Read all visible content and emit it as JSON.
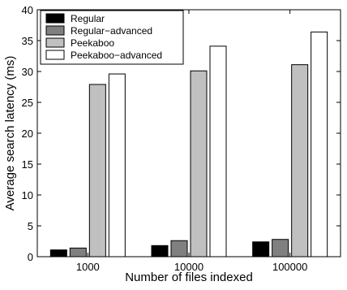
{
  "chart_data": {
    "type": "bar",
    "title": "",
    "xlabel": "Number of files indexed",
    "ylabel": "Average search latency (ms)",
    "categories": [
      "1000",
      "10000",
      "100000"
    ],
    "ylim": [
      0,
      40
    ],
    "yticks": [
      0,
      5,
      10,
      15,
      20,
      25,
      30,
      35,
      40
    ],
    "grid": false,
    "legend_position": "top-left",
    "series": [
      {
        "name": "Regular",
        "color": "#000000",
        "values": [
          1.1,
          1.8,
          2.4
        ]
      },
      {
        "name": "Regular−advanced",
        "color": "#808080",
        "values": [
          1.4,
          2.6,
          2.8
        ]
      },
      {
        "name": "Peekaboo",
        "color": "#c0c0c0",
        "values": [
          27.9,
          30.1,
          31.1
        ]
      },
      {
        "name": "Peekaboo−advanced",
        "color": "#ffffff",
        "values": [
          29.6,
          34.1,
          36.4
        ]
      }
    ]
  }
}
